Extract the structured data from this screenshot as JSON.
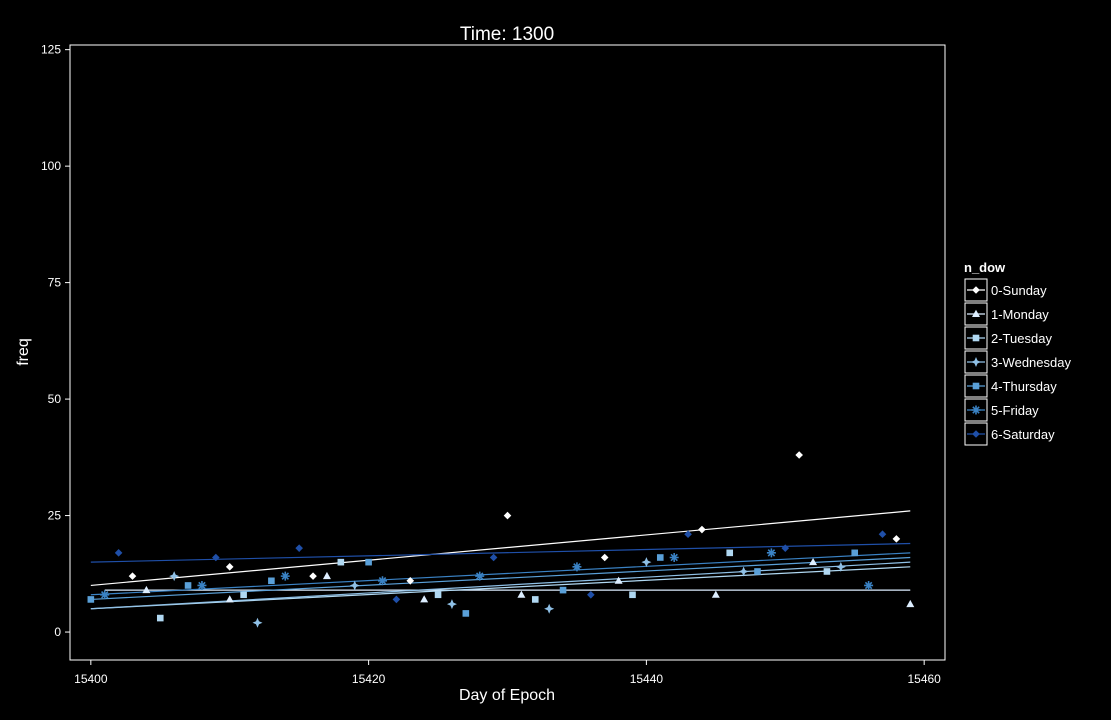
{
  "chart_data": {
    "type": "scatter",
    "title": "Time: 1300",
    "xlabel": "Day of Epoch",
    "ylabel": "freq",
    "xlim": [
      15398.5,
      15461.5
    ],
    "ylim": [
      -6,
      126
    ],
    "xticks": [
      15400,
      15420,
      15440,
      15460
    ],
    "yticks": [
      0,
      25,
      50,
      75,
      100,
      125
    ],
    "grid": false,
    "legend_title": "n_dow",
    "legend_position": "right",
    "series": [
      {
        "name": "0-Sunday",
        "color": "#ffffff",
        "marker": "diamond",
        "points": [
          [
            15403,
            12
          ],
          [
            15410,
            14
          ],
          [
            15416,
            12
          ],
          [
            15423,
            11
          ],
          [
            15430,
            25
          ],
          [
            15437,
            16
          ],
          [
            15444,
            22
          ],
          [
            15451,
            38
          ],
          [
            15458,
            20
          ]
        ],
        "trend": [
          [
            15400,
            10
          ],
          [
            15459,
            26
          ]
        ]
      },
      {
        "name": "1-Monday",
        "color": "#ddeeff",
        "marker": "triangle",
        "points": [
          [
            15404,
            9
          ],
          [
            15410,
            7
          ],
          [
            15417,
            12
          ],
          [
            15424,
            7
          ],
          [
            15431,
            8
          ],
          [
            15438,
            11
          ],
          [
            15445,
            8
          ],
          [
            15452,
            15
          ],
          [
            15459,
            6
          ]
        ],
        "trend": [
          [
            15401,
            9
          ],
          [
            15459,
            9
          ]
        ]
      },
      {
        "name": "2-Tuesday",
        "color": "#b0d8f2",
        "marker": "square",
        "points": [
          [
            15405,
            3
          ],
          [
            15411,
            8
          ],
          [
            15418,
            15
          ],
          [
            15425,
            8
          ],
          [
            15432,
            7
          ],
          [
            15439,
            8
          ],
          [
            15446,
            17
          ],
          [
            15453,
            13
          ]
        ],
        "trend": [
          [
            15400,
            5
          ],
          [
            15459,
            14
          ]
        ]
      },
      {
        "name": "3-Wednesday",
        "color": "#8fc0e6",
        "marker": "star4",
        "points": [
          [
            15406,
            12
          ],
          [
            15412,
            2
          ],
          [
            15419,
            10
          ],
          [
            15426,
            6
          ],
          [
            15433,
            5
          ],
          [
            15440,
            15
          ],
          [
            15447,
            13
          ],
          [
            15454,
            14
          ]
        ],
        "trend": [
          [
            15400,
            5
          ],
          [
            15459,
            15
          ]
        ]
      },
      {
        "name": "4-Thursday",
        "color": "#5aa0d8",
        "marker": "square",
        "points": [
          [
            15400,
            7
          ],
          [
            15407,
            10
          ],
          [
            15413,
            11
          ],
          [
            15420,
            15
          ],
          [
            15427,
            4
          ],
          [
            15434,
            9
          ],
          [
            15441,
            16
          ],
          [
            15448,
            13
          ],
          [
            15455,
            17
          ]
        ],
        "trend": [
          [
            15400,
            7
          ],
          [
            15459,
            16
          ]
        ]
      },
      {
        "name": "5-Friday",
        "color": "#3a82c4",
        "marker": "asterisk",
        "points": [
          [
            15401,
            8
          ],
          [
            15408,
            10
          ],
          [
            15414,
            12
          ],
          [
            15421,
            11
          ],
          [
            15428,
            12
          ],
          [
            15435,
            14
          ],
          [
            15442,
            16
          ],
          [
            15449,
            17
          ],
          [
            15456,
            10
          ]
        ],
        "trend": [
          [
            15400,
            8
          ],
          [
            15459,
            17
          ]
        ]
      },
      {
        "name": "6-Saturday",
        "color": "#1f4fa8",
        "marker": "diamond",
        "points": [
          [
            15402,
            17
          ],
          [
            15409,
            16
          ],
          [
            15415,
            18
          ],
          [
            15422,
            7
          ],
          [
            15429,
            16
          ],
          [
            15436,
            8
          ],
          [
            15443,
            21
          ],
          [
            15450,
            18
          ],
          [
            15457,
            21
          ]
        ],
        "trend": [
          [
            15400,
            15
          ],
          [
            15459,
            19
          ]
        ]
      }
    ]
  }
}
